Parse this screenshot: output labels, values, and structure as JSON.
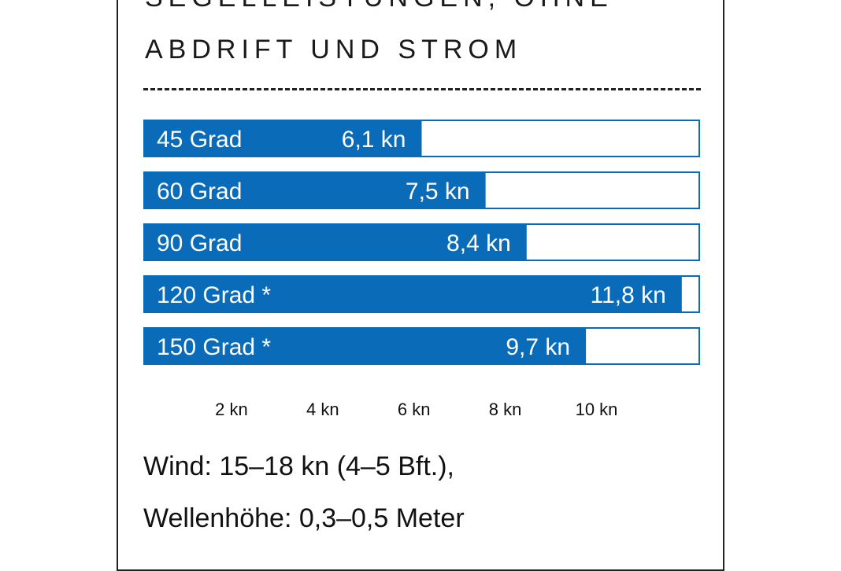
{
  "heading": {
    "line1": "SEGELLEISTUNGEN, OHNE",
    "line2": "ABDRIFT UND STROM"
  },
  "chart_data": {
    "type": "bar",
    "orientation": "horizontal",
    "categories": [
      "45 Grad",
      "60 Grad",
      "90 Grad",
      "120 Grad *",
      "150 Grad *"
    ],
    "values": [
      6.1,
      7.5,
      8.4,
      11.8,
      9.7
    ],
    "value_labels": [
      "6,1 kn",
      "7,5 kn",
      "8,4 kn",
      "11,8 kn",
      "9,7 kn"
    ],
    "xlim": [
      0,
      12.2
    ],
    "xticks": [
      2,
      4,
      6,
      8,
      10
    ],
    "xtick_labels": [
      "2 kn",
      "4 kn",
      "6 kn",
      "8 kn",
      "10 kn"
    ],
    "grid": false,
    "bar_color": "#0a6cb8",
    "track_border_color": "#0a6cb8"
  },
  "notes": {
    "line1": "Wind: 15–18 kn (4–5 Bft.),",
    "line2": "Wellenhöhe: 0,3–0,5 Meter"
  }
}
